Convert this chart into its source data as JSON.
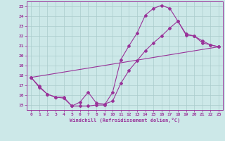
{
  "xlabel": "Windchill (Refroidissement éolien,°C)",
  "bg_color": "#cce8e8",
  "grid_color": "#aacccc",
  "line_color": "#993399",
  "xlim": [
    -0.5,
    23.5
  ],
  "ylim": [
    14.5,
    25.5
  ],
  "xticks": [
    0,
    1,
    2,
    3,
    4,
    5,
    6,
    7,
    8,
    9,
    10,
    11,
    12,
    13,
    14,
    15,
    16,
    17,
    18,
    19,
    20,
    21,
    22,
    23
  ],
  "yticks": [
    15,
    16,
    17,
    18,
    19,
    20,
    21,
    22,
    23,
    24,
    25
  ],
  "line1_x": [
    0,
    1,
    2,
    3,
    4,
    5,
    6,
    7,
    8,
    9,
    10,
    11,
    12,
    13,
    14,
    15,
    16,
    17,
    18,
    19,
    20,
    21,
    22,
    23
  ],
  "line1_y": [
    17.8,
    16.8,
    16.1,
    15.8,
    15.8,
    14.9,
    14.9,
    14.9,
    15.0,
    15.0,
    16.3,
    19.6,
    21.0,
    22.3,
    24.1,
    24.8,
    25.1,
    24.8,
    23.5,
    22.1,
    22.0,
    21.3,
    21.1,
    20.9
  ],
  "line2_x": [
    0,
    1,
    2,
    3,
    4,
    5,
    6,
    7,
    8,
    9,
    10,
    11,
    12,
    13,
    14,
    15,
    16,
    17,
    18,
    19,
    20,
    21,
    22,
    23
  ],
  "line2_y": [
    17.8,
    16.9,
    16.1,
    15.8,
    15.7,
    14.9,
    15.3,
    16.3,
    15.2,
    15.1,
    15.4,
    17.2,
    18.5,
    19.5,
    20.5,
    21.3,
    22.0,
    22.8,
    23.5,
    22.2,
    22.0,
    21.5,
    21.1,
    20.9
  ],
  "line3_x": [
    0,
    23
  ],
  "line3_y": [
    17.8,
    20.9
  ]
}
